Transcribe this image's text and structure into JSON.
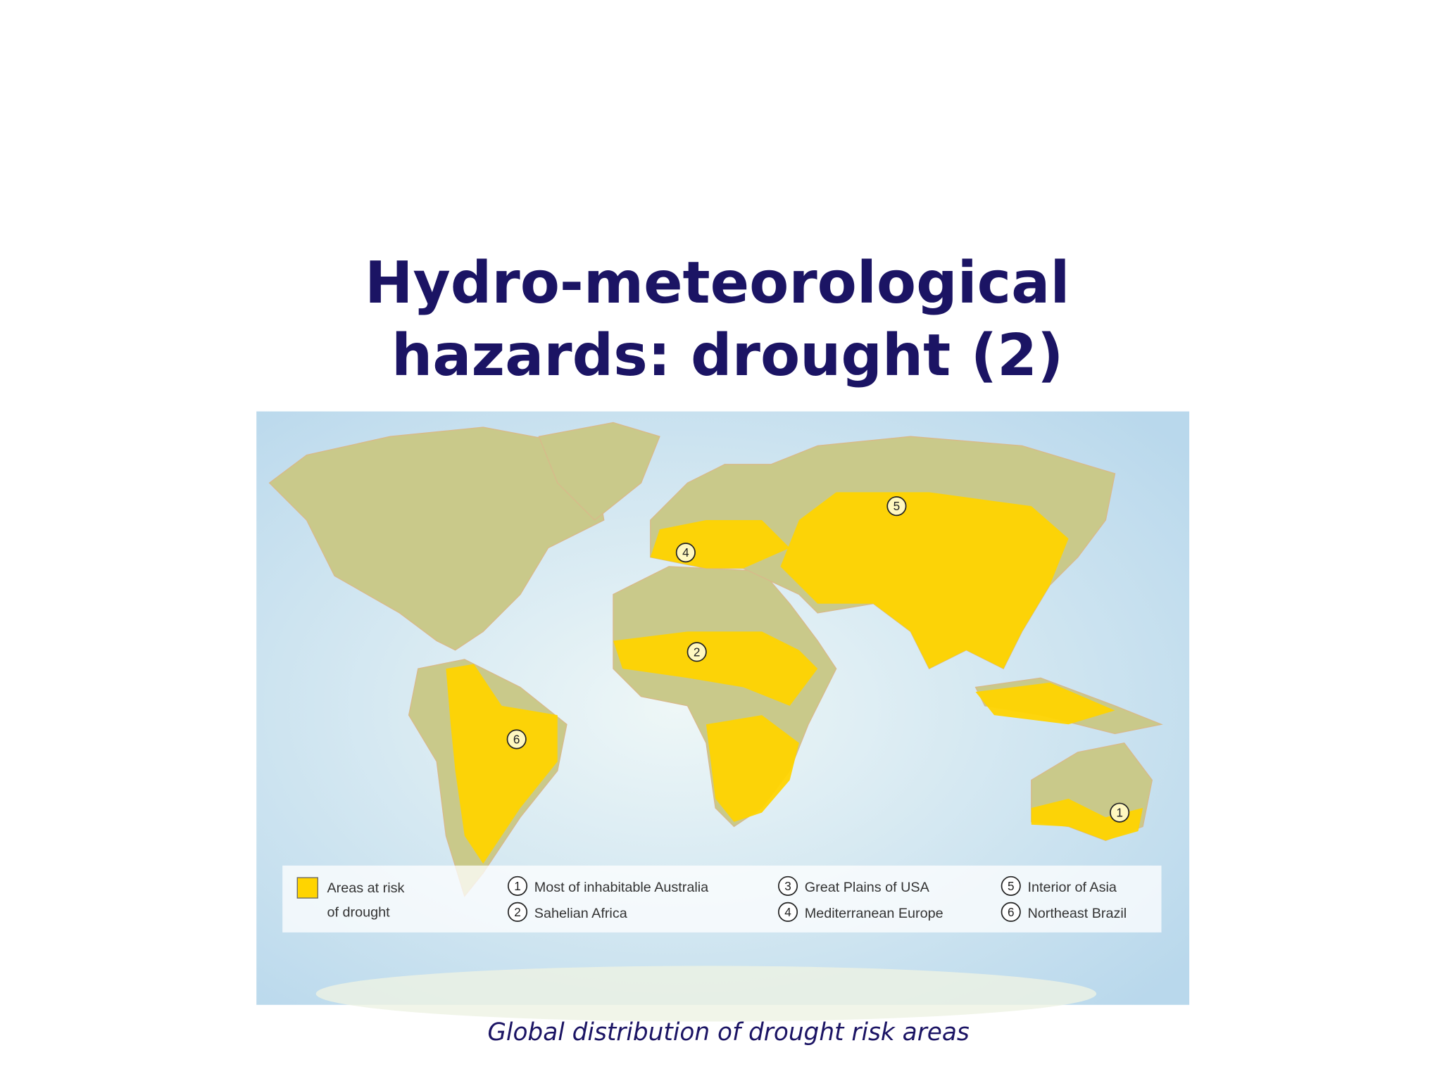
{
  "title": [
    "Hydro-meteorological",
    "hazards: drought (2)"
  ],
  "map": {
    "markers": [
      "5",
      "4",
      "2",
      "6",
      "1"
    ],
    "legend": {
      "swatch_label": [
        "Areas at risk",
        "of drought"
      ],
      "items": [
        {
          "number": "1",
          "label": "Most of inhabitable Australia"
        },
        {
          "number": "2",
          "label": "Sahelian Africa"
        },
        {
          "number": "3",
          "label": "Great Plains of USA"
        },
        {
          "number": "4",
          "label": "Mediterranean Europe"
        },
        {
          "number": "5",
          "label": "Interior of Asia"
        },
        {
          "number": "6",
          "label": "Northeast Brazil"
        }
      ]
    }
  },
  "caption": "Global distribution of drought risk areas"
}
